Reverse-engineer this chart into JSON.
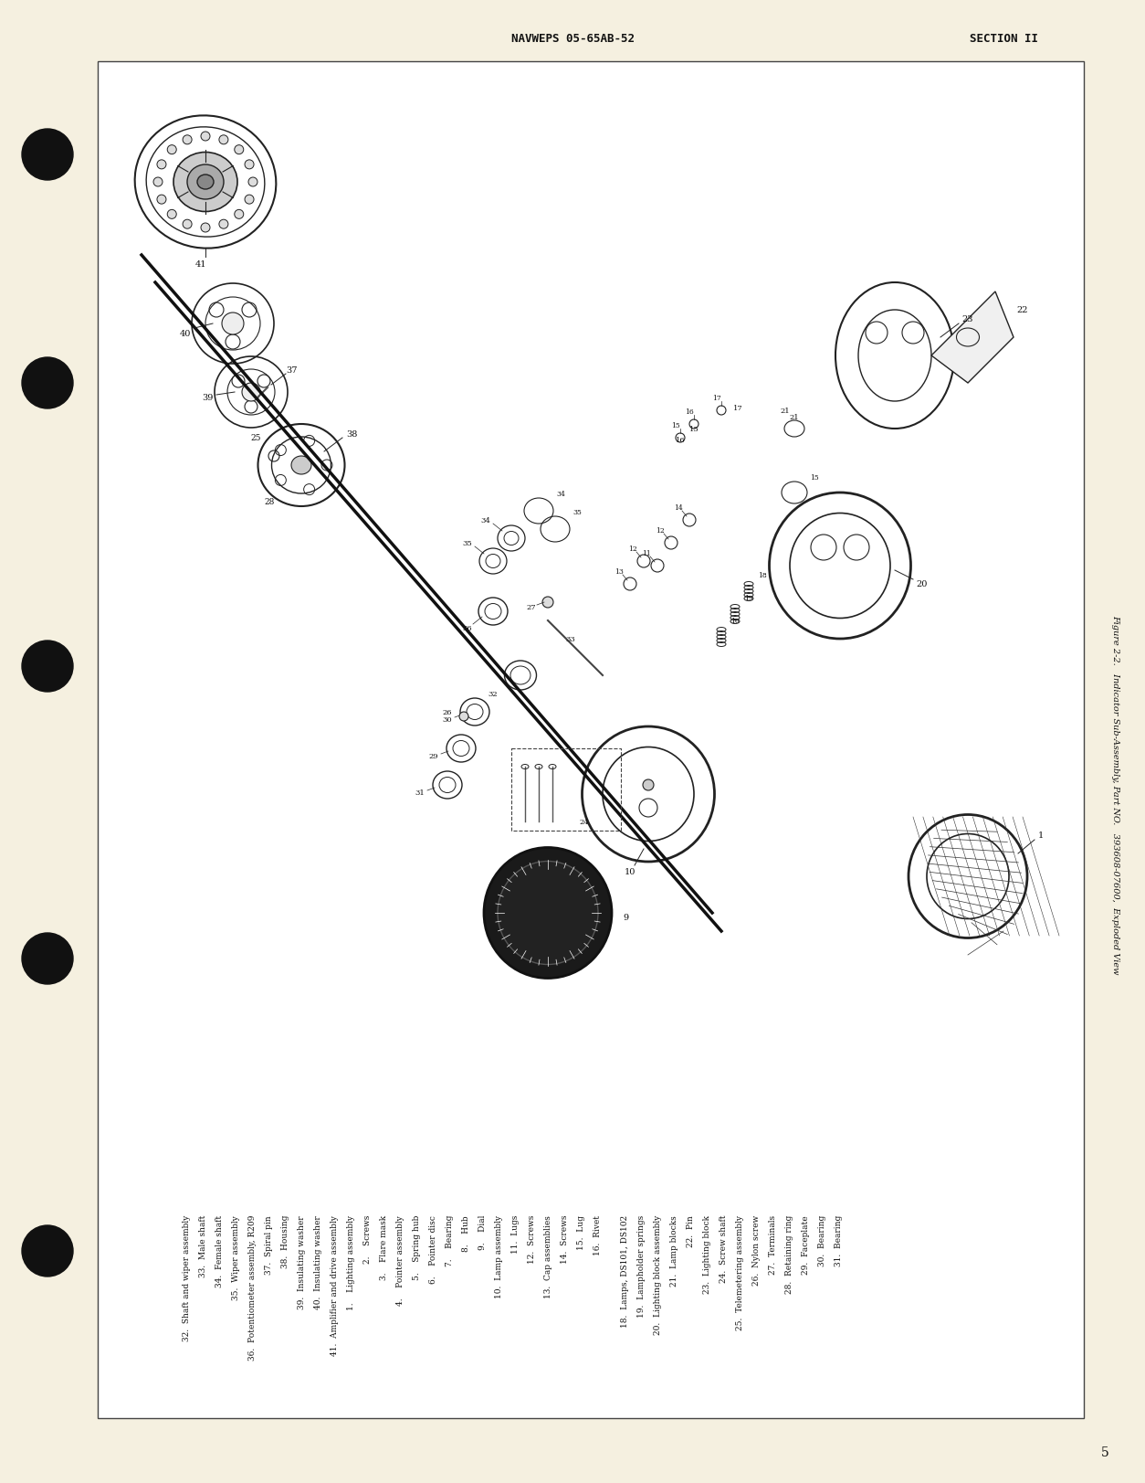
{
  "bg_color": "#f5f0e0",
  "box_bg": "#ffffff",
  "header_left": "NAVWEPS 05-65AB-52",
  "header_right": "SECTION II",
  "footer_page": "5",
  "figure_caption": "Figure 2-2.   Indicator Sub-Assembly, Part NO.   393608-07600,  Exploded View",
  "legend_items_left": [
    "1.    Lighting assembly",
    "2.    Screws",
    "3.    Flare mask",
    "4.    Pointer assembly",
    "5.    Spring hub",
    "6.    Pointer disc",
    "7.    Bearing",
    "8.    Hub",
    "9.    Dial",
    "10.  Lamp assembly",
    "11.  Lugs",
    "12.  Screws",
    "13.  Cap assemblies",
    "14.  Screws",
    "15.  Lug",
    "16.  Rivet"
  ],
  "legend_items_mid": [
    "18.  Lamps, DS101, DS102",
    "19.  Lampholder springs",
    "20.  Lighting block assembly",
    "21.  Lamp blocks",
    "22.  Pin",
    "23.  Lighting block",
    "24.  Screw shaft",
    "25.  Telemetering assembly",
    "26.  Nylon screw",
    "27.  Terminals",
    "28.  Retaining ring",
    "29.  Faceplate",
    "30.  Bearing",
    "31.  Bearing"
  ],
  "legend_items_right": [
    "32.  Shaft and wiper assembly",
    "33.  Male shaft",
    "34.  Female shaft",
    "35.  Wiper assembly",
    "36.  Potentiometer assembly, R209",
    "37.  Spiral pin",
    "38.  Housing",
    "39.  Insulating washer",
    "40.  Insulating washer",
    "41.  Amplifier and drive assembly"
  ],
  "text_color": "#111111",
  "line_color": "#222222"
}
